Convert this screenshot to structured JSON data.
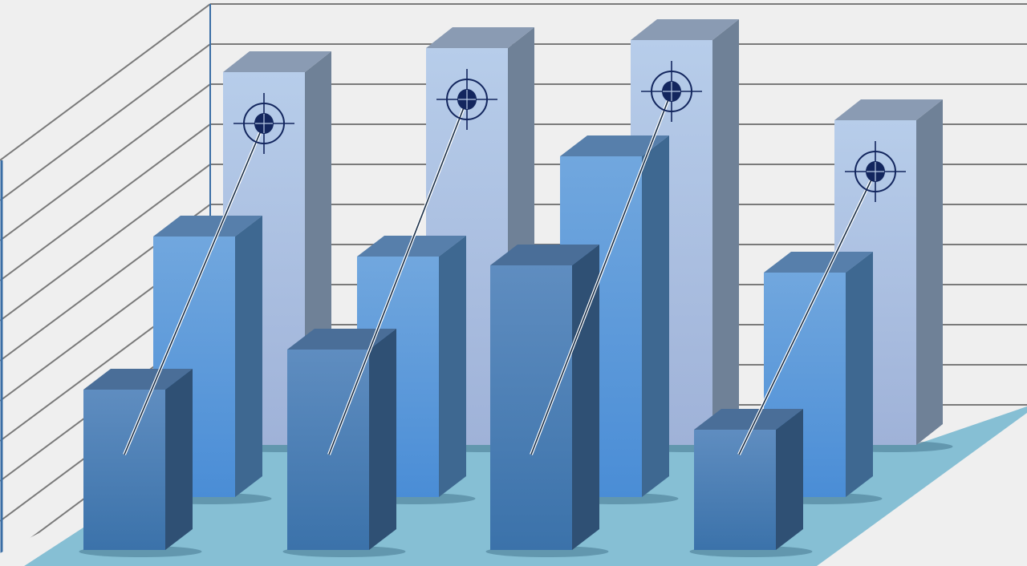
{
  "chart_data": {
    "type": "bar",
    "style": "3d-grouped-rows",
    "title": "",
    "xlabel": "",
    "ylabel": "",
    "grid": true,
    "legend": "none",
    "categories": [
      "",
      "",
      "",
      ""
    ],
    "ylim": [
      0,
      11
    ],
    "series": [
      {
        "row": "back",
        "values": [
          9.3,
          9.9,
          10.1,
          8.1
        ],
        "color": "#b4cbea",
        "markers": true
      },
      {
        "row": "middle",
        "values": [
          6.5,
          6.0,
          8.5,
          5.6
        ],
        "color": "#5f9ddc"
      },
      {
        "row": "front",
        "values": [
          4.0,
          5.0,
          7.1,
          3.0
        ],
        "color": "#4a7fb6"
      }
    ],
    "colors": {
      "background": "#efefef",
      "gridline": "#7a7a7a",
      "axis": "#3a6ea5",
      "floor": "#86bfd4",
      "marker": "#13265e"
    }
  }
}
